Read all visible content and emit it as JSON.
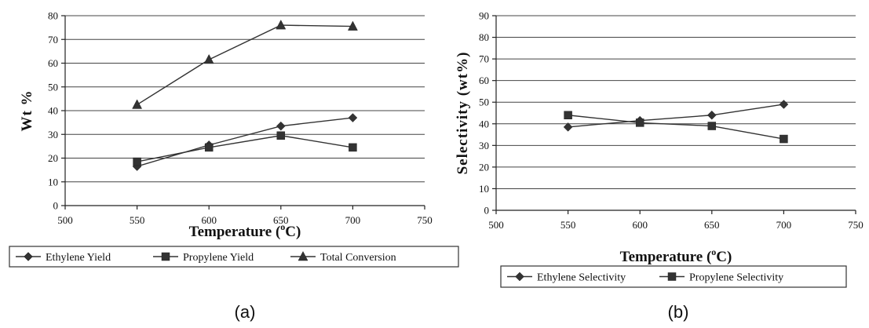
{
  "chart_data": [
    {
      "id": "a",
      "type": "line",
      "caption": "(a)",
      "xlabel": "Temperature (°C)",
      "xlabel_main": "Temperature (",
      "xlabel_sup": "o",
      "xlabel_tail": "C)",
      "ylabel": "Wt %",
      "xlim": [
        500,
        750
      ],
      "xticks": [
        500,
        550,
        600,
        650,
        700,
        750
      ],
      "ylim": [
        0,
        80
      ],
      "yticks": [
        0,
        10,
        20,
        30,
        40,
        50,
        60,
        70,
        80
      ],
      "grid": true,
      "legend_position": "bottom",
      "series": [
        {
          "name": "Ethylene Yield",
          "marker": "diamond",
          "x": [
            550,
            600,
            650,
            700
          ],
          "y": [
            16.5,
            25.5,
            33.5,
            37
          ]
        },
        {
          "name": "Propylene Yield",
          "marker": "square",
          "x": [
            550,
            600,
            650,
            700
          ],
          "y": [
            18.5,
            24.5,
            29.5,
            24.5
          ]
        },
        {
          "name": "Total Conversion",
          "marker": "triangle",
          "x": [
            550,
            600,
            650,
            700
          ],
          "y": [
            42.5,
            61.5,
            76,
            75.5
          ]
        }
      ]
    },
    {
      "id": "b",
      "type": "line",
      "caption": "(b)",
      "xlabel": "Temperature (°C)",
      "xlabel_main": "Temperature (",
      "xlabel_sup": "o",
      "xlabel_tail": "C)",
      "ylabel": "Selectivity (wt%)",
      "xlim": [
        500,
        750
      ],
      "xticks": [
        500,
        550,
        600,
        650,
        700,
        750
      ],
      "ylim": [
        0,
        90
      ],
      "yticks": [
        0,
        10,
        20,
        30,
        40,
        50,
        60,
        70,
        80,
        90
      ],
      "grid": true,
      "legend_position": "bottom",
      "series": [
        {
          "name": "Ethylene Selectivity",
          "marker": "diamond",
          "x": [
            550,
            600,
            650,
            700
          ],
          "y": [
            38.5,
            41.5,
            44,
            49
          ]
        },
        {
          "name": "Propylene Selectivity",
          "marker": "square",
          "x": [
            550,
            600,
            650,
            700
          ],
          "y": [
            44,
            40.5,
            39,
            33
          ]
        }
      ]
    }
  ]
}
